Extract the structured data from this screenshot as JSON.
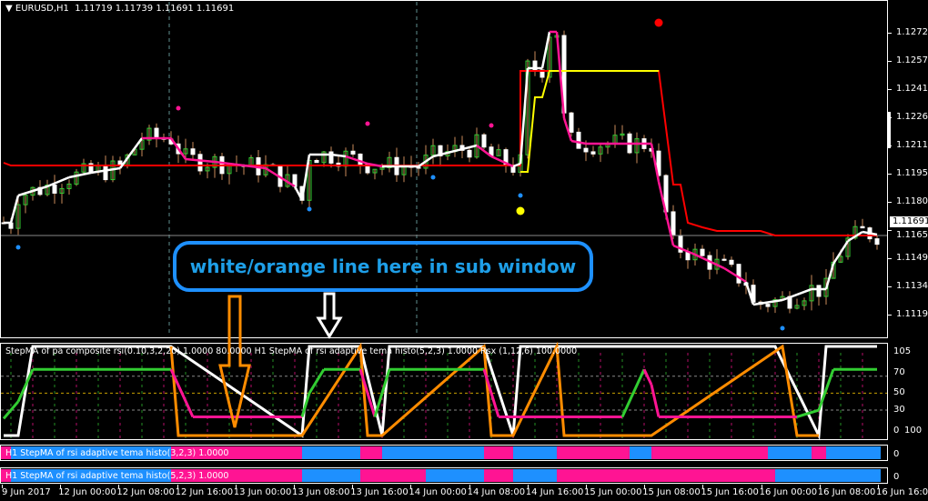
{
  "header": {
    "symbol_tf": "EURUSD,H1",
    "ohlc": "1.11719 1.11739 1.11691 1.11691",
    "menu_icon": "triangle-down"
  },
  "price_axis": {
    "labels": [
      "1.12725",
      "1.12570",
      "1.12415",
      "1.12260",
      "1.12110",
      "1.11955",
      "1.11805",
      "1.11650",
      "1.11495",
      "1.11345",
      "1.11190"
    ],
    "current_price": "1.11691"
  },
  "time_axis": {
    "labels": [
      "9 Jun 2017",
      "12 Jun 00:00",
      "12 Jun 08:00",
      "12 Jun 16:00",
      "13 Jun 00:00",
      "13 Jun 08:00",
      "13 Jun 16:00",
      "14 Jun 00:00",
      "14 Jun 08:00",
      "14 Jun 16:00",
      "15 Jun 00:00",
      "15 Jun 08:00",
      "15 Jun 16:00",
      "16 Jun 00:00",
      "16 Jun 08:00",
      "16 Jun 16:00"
    ]
  },
  "annotation": {
    "text": "white/orange line here in sub window",
    "color": "#1e90ff"
  },
  "colors": {
    "up_candle": "#32cd32",
    "down_candle": "#ffffff",
    "stepma_up": "#ffffff",
    "stepma_down": "#ff1493",
    "red_line": "#ff0000",
    "yellow_line": "#ffff00",
    "osc_green": "#32cd32",
    "osc_orange": "#ff8c00",
    "hist_pink": "#ff1493",
    "hist_blue": "#1e90ff"
  },
  "main": {
    "stepma": [
      [
        0,
        1.11685,
        "w"
      ],
      [
        1,
        1.11685,
        "w"
      ],
      [
        2,
        1.11835,
        "w"
      ],
      [
        4,
        1.1186,
        "w"
      ],
      [
        6,
        1.11885,
        "w"
      ],
      [
        9,
        1.11935,
        "w"
      ],
      [
        12,
        1.1196,
        "w"
      ],
      [
        16,
        1.11985,
        "w"
      ],
      [
        19,
        1.1215,
        "w"
      ],
      [
        23,
        1.1215,
        "p"
      ],
      [
        25,
        1.12035,
        "p"
      ],
      [
        29,
        1.1202,
        "p"
      ],
      [
        36,
        1.11985,
        "p"
      ],
      [
        40,
        1.11885,
        "p"
      ],
      [
        41,
        1.1181,
        "w"
      ],
      [
        42,
        1.1206,
        "w"
      ],
      [
        45,
        1.1206,
        "w"
      ],
      [
        47,
        1.1205,
        "w"
      ],
      [
        50,
        1.1201,
        "p"
      ],
      [
        52,
        1.11995,
        "p"
      ],
      [
        57,
        1.11995,
        "w"
      ],
      [
        59,
        1.1205,
        "w"
      ],
      [
        65,
        1.1211,
        "w"
      ],
      [
        67,
        1.1205,
        "p"
      ],
      [
        70,
        1.11995,
        "p"
      ],
      [
        71,
        1.1201,
        "w"
      ],
      [
        72,
        1.12535,
        "w"
      ],
      [
        74,
        1.12535,
        "w"
      ],
      [
        75,
        1.12735,
        "w"
      ],
      [
        76,
        1.12735,
        "p"
      ],
      [
        77,
        1.1226,
        "p"
      ],
      [
        78,
        1.12135,
        "p"
      ],
      [
        80,
        1.1212,
        "p"
      ],
      [
        89,
        1.1212,
        "p"
      ],
      [
        90,
        1.1191,
        "p"
      ],
      [
        92,
        1.1156,
        "p"
      ],
      [
        95,
        1.1151,
        "p"
      ],
      [
        99,
        1.11435,
        "p"
      ],
      [
        102,
        1.1136,
        "p"
      ],
      [
        103,
        1.11235,
        "w"
      ],
      [
        107,
        1.1126,
        "w"
      ],
      [
        111,
        1.1132,
        "w"
      ],
      [
        113,
        1.1132,
        "w"
      ],
      [
        114,
        1.1146,
        "w"
      ],
      [
        116,
        1.11585,
        "w"
      ],
      [
        118,
        1.11635,
        "w"
      ],
      [
        120,
        1.1162,
        "w"
      ]
    ],
    "red_line": [
      [
        0,
        1.12015
      ],
      [
        1,
        1.12
      ],
      [
        71,
        1.12
      ],
      [
        71,
        1.1252
      ],
      [
        90,
        1.1252
      ],
      [
        92,
        1.11895
      ],
      [
        93,
        1.11895
      ],
      [
        94,
        1.11685
      ],
      [
        96,
        1.1166
      ],
      [
        98,
        1.1164
      ],
      [
        104,
        1.1164
      ],
      [
        106,
        1.11615
      ],
      [
        120,
        1.11615
      ]
    ],
    "yellow_line": [
      [
        71,
        1.11965
      ],
      [
        72,
        1.11965
      ],
      [
        73,
        1.12375
      ],
      [
        74,
        1.12375
      ],
      [
        75,
        1.1252
      ],
      [
        90,
        1.1252
      ]
    ],
    "dots": [
      {
        "bar": 90,
        "price": 1.12785,
        "color": "#ff0000",
        "size": "large"
      },
      {
        "bar": 24,
        "price": 1.12315,
        "color": "#ff1493"
      },
      {
        "bar": 50,
        "price": 1.1223,
        "color": "#ff1493"
      },
      {
        "bar": 67,
        "price": 1.1222,
        "color": "#ff1493"
      },
      {
        "bar": 2,
        "price": 1.1155,
        "color": "#1e90ff"
      },
      {
        "bar": 42,
        "price": 1.1176,
        "color": "#1e90ff"
      },
      {
        "bar": 59,
        "price": 1.11935,
        "color": "#1e90ff"
      },
      {
        "bar": 71,
        "price": 1.11835,
        "color": "#1e90ff"
      },
      {
        "bar": 107,
        "price": 1.11105,
        "color": "#1e90ff"
      },
      {
        "bar": 71,
        "price": 1.1175,
        "color": "#ffff00",
        "size": "large"
      }
    ]
  },
  "sub1": {
    "legend": "StepMA of pa composite rsi(0.10,3,2,20) 1.0000 80.0000   H1 StepMA of rsi adaptive tema histo(5,2,3) 1.0000  Rsx (1,12,6) 100.0000",
    "levels": [
      "105",
      "70",
      "50",
      "30",
      "0",
      "100"
    ],
    "white": [
      [
        0,
        0
      ],
      [
        2,
        0
      ],
      [
        4,
        105
      ],
      [
        23,
        105
      ],
      [
        41,
        0
      ],
      [
        42,
        105
      ],
      [
        49,
        105
      ],
      [
        52,
        0
      ],
      [
        53,
        105
      ],
      [
        66,
        105
      ],
      [
        70,
        0
      ],
      [
        71,
        105
      ],
      [
        106,
        105
      ],
      [
        112,
        0
      ],
      [
        113,
        105
      ],
      [
        120,
        105
      ]
    ],
    "orange": [
      [
        23,
        105
      ],
      [
        24,
        0
      ],
      [
        41,
        0
      ],
      [
        49,
        105
      ],
      [
        50,
        0
      ],
      [
        52,
        0
      ],
      [
        66,
        105
      ],
      [
        67,
        0
      ],
      [
        70,
        0
      ],
      [
        76,
        105
      ],
      [
        77,
        0
      ],
      [
        89,
        0
      ],
      [
        107,
        105
      ],
      [
        109,
        0
      ],
      [
        112,
        0
      ]
    ],
    "rsx": [
      [
        0,
        20,
        "g"
      ],
      [
        2,
        40,
        "g"
      ],
      [
        4,
        78,
        "g"
      ],
      [
        23,
        78,
        "g"
      ],
      [
        26,
        22,
        "p"
      ],
      [
        41,
        22,
        "p"
      ],
      [
        42,
        50,
        "g"
      ],
      [
        44,
        78,
        "g"
      ],
      [
        49,
        78,
        "g"
      ],
      [
        51,
        22,
        "p"
      ],
      [
        52,
        50,
        "g"
      ],
      [
        53,
        78,
        "g"
      ],
      [
        66,
        78,
        "g"
      ],
      [
        68,
        22,
        "p"
      ],
      [
        85,
        22,
        "p"
      ],
      [
        88,
        78,
        "g"
      ],
      [
        89,
        60,
        "p"
      ],
      [
        90,
        22,
        "p"
      ],
      [
        109,
        22,
        "p"
      ],
      [
        112,
        30,
        "g"
      ],
      [
        114,
        78,
        "g"
      ],
      [
        120,
        78,
        "g"
      ]
    ]
  },
  "sub2": {
    "label": "H1 StepMA of rsi adaptive tema histo(3,2,3) 1.0000",
    "axis": "0",
    "segments": [
      [
        0,
        1.5,
        "p"
      ],
      [
        1.5,
        23.5,
        "b"
      ],
      [
        23.5,
        41.5,
        "p"
      ],
      [
        41.5,
        49.5,
        "b"
      ],
      [
        49.5,
        52.5,
        "p"
      ],
      [
        52.5,
        66.5,
        "b"
      ],
      [
        66.5,
        70.5,
        "p"
      ],
      [
        70.5,
        76.5,
        "b"
      ],
      [
        76.5,
        86.5,
        "p"
      ],
      [
        86.5,
        89.5,
        "b"
      ],
      [
        89.5,
        105.5,
        "p"
      ],
      [
        105.5,
        111.5,
        "b"
      ],
      [
        111.5,
        113.5,
        "p"
      ],
      [
        113.5,
        121,
        "b"
      ]
    ]
  },
  "sub3": {
    "label": "H1 StepMA of rsi adaptive tema histo(5,2,3) 1.0000",
    "axis": "0",
    "segments": [
      [
        0,
        1.5,
        "p"
      ],
      [
        1.5,
        23.5,
        "b"
      ],
      [
        23.5,
        41.5,
        "p"
      ],
      [
        41.5,
        49.5,
        "b"
      ],
      [
        49.5,
        58.5,
        "p"
      ],
      [
        58.5,
        66.5,
        "b"
      ],
      [
        66.5,
        70.5,
        "p"
      ],
      [
        70.5,
        76.5,
        "b"
      ],
      [
        76.5,
        106.5,
        "p"
      ],
      [
        106.5,
        121,
        "b"
      ]
    ]
  }
}
